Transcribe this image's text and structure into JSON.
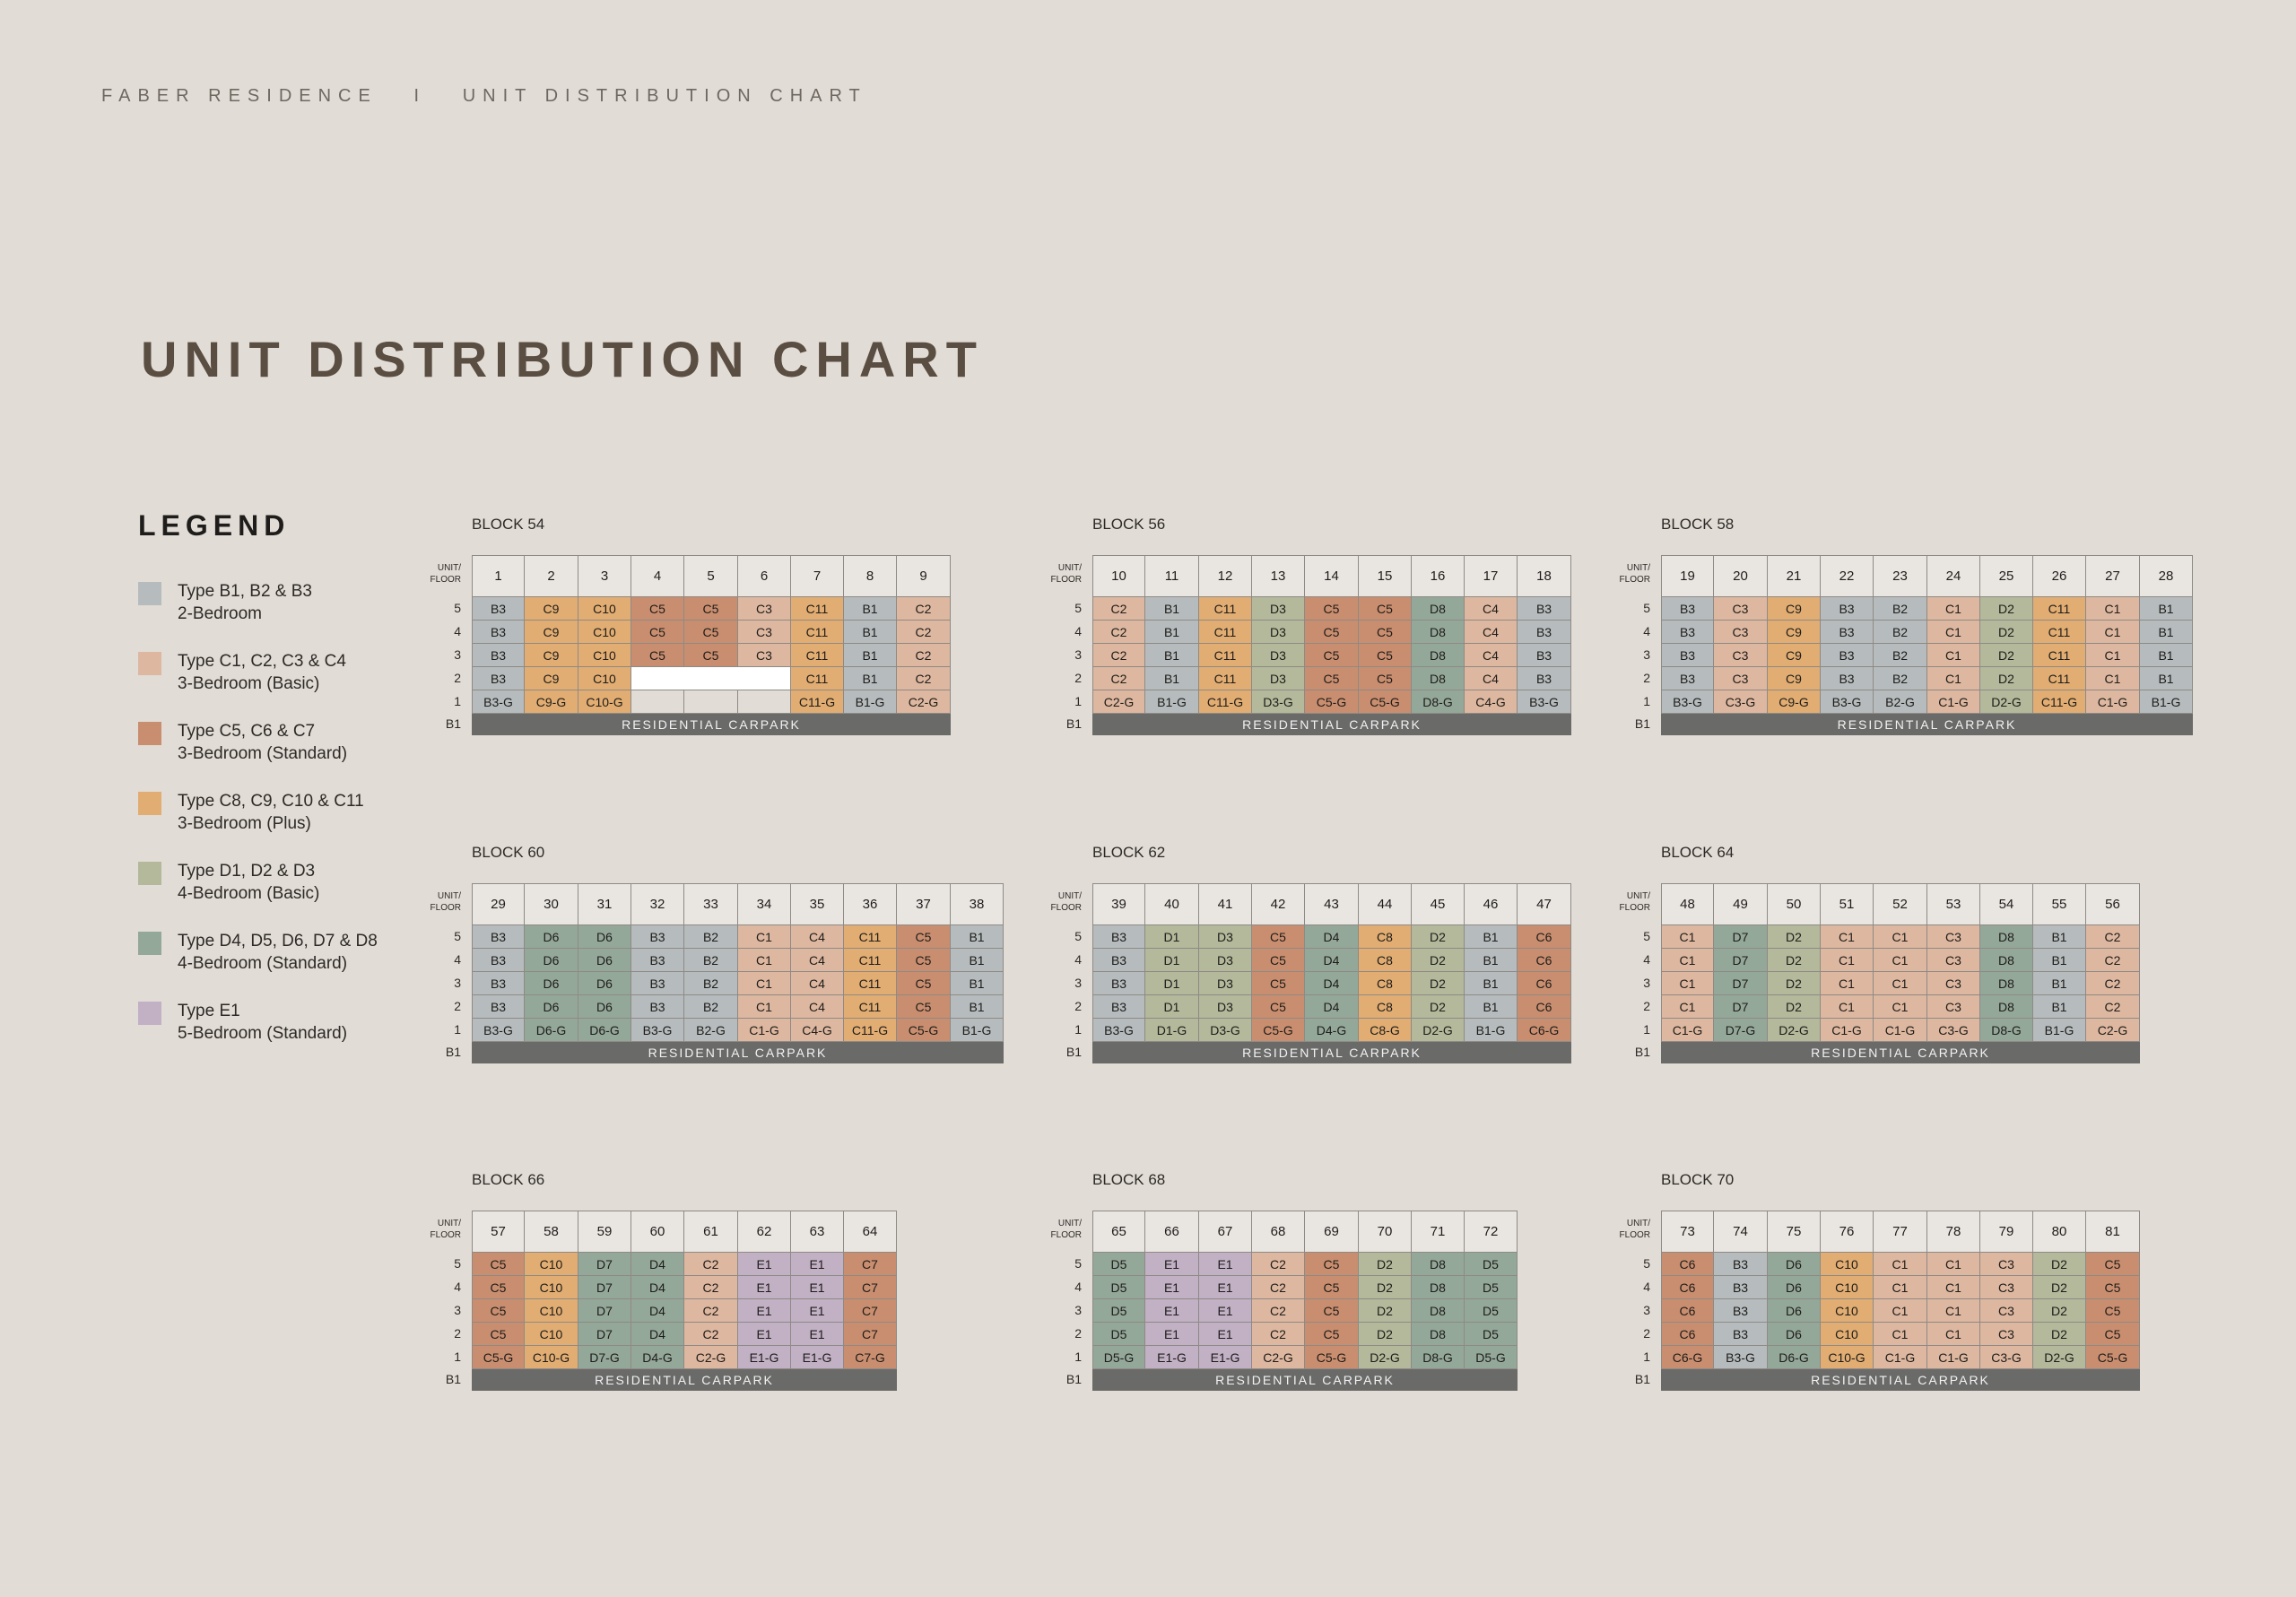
{
  "header": "FABER RESIDENCE   I   UNIT DISTRIBUTION CHART",
  "page_title": "UNIT DISTRIBUTION CHART",
  "floor_header": [
    "UNIT/",
    "FLOOR"
  ],
  "carpark_label": "RESIDENTIAL CARPARK",
  "basement_label": "B1",
  "floors": [
    "5",
    "4",
    "3",
    "2",
    "1"
  ],
  "legend": {
    "title": "LEGEND",
    "items": [
      {
        "key": "B",
        "line1": "Type B1, B2 & B3",
        "line2": "2-Bedroom",
        "color": "#b6bcbd"
      },
      {
        "key": "Cb",
        "line1": "Type C1, C2, C3 & C4",
        "line2": "3-Bedroom (Basic)",
        "color": "#ddb79f"
      },
      {
        "key": "Cs",
        "line1": "Type C5, C6 & C7",
        "line2": "3-Bedroom (Standard)",
        "color": "#c98e6f"
      },
      {
        "key": "Cp",
        "line1": "Type C8, C9, C10 & C11",
        "line2": "3-Bedroom (Plus)",
        "color": "#e1ad72"
      },
      {
        "key": "Db",
        "line1": "Type D1, D2 & D3",
        "line2": "4-Bedroom (Basic)",
        "color": "#b3b99a"
      },
      {
        "key": "Ds",
        "line1": "Type D4, D5, D6, D7 & D8",
        "line2": "4-Bedroom (Standard)",
        "color": "#94a899"
      },
      {
        "key": "E",
        "line1": "Type E1",
        "line2": "5-Bedroom (Standard)",
        "color": "#c2b0c4"
      }
    ]
  },
  "blocks": [
    {
      "name": "BLOCK 54",
      "units": [
        "1",
        "2",
        "3",
        "4",
        "5",
        "6",
        "7",
        "8",
        "9"
      ],
      "types": [
        "B3",
        "C9",
        "C10",
        "C5",
        "C5",
        "C3",
        "C11",
        "B1",
        "C2"
      ],
      "ground": [
        "B3-G",
        "C9-G",
        "C10-G",
        "",
        "",
        "",
        "C11-G",
        "B1-G",
        "C2-G"
      ],
      "void_floor2": [
        3,
        4,
        5
      ]
    },
    {
      "name": "BLOCK 56",
      "units": [
        "10",
        "11",
        "12",
        "13",
        "14",
        "15",
        "16",
        "17",
        "18"
      ],
      "types": [
        "C2",
        "B1",
        "C11",
        "D3",
        "C5",
        "C5",
        "D8",
        "C4",
        "B3"
      ],
      "ground": [
        "C2-G",
        "B1-G",
        "C11-G",
        "D3-G",
        "C5-G",
        "C5-G",
        "D8-G",
        "C4-G",
        "B3-G"
      ]
    },
    {
      "name": "BLOCK 58",
      "units": [
        "19",
        "20",
        "21",
        "22",
        "23",
        "24",
        "25",
        "26",
        "27",
        "28"
      ],
      "types": [
        "B3",
        "C3",
        "C9",
        "B3",
        "B2",
        "C1",
        "D2",
        "C11",
        "C1",
        "B1"
      ],
      "ground": [
        "B3-G",
        "C3-G",
        "C9-G",
        "B3-G",
        "B2-G",
        "C1-G",
        "D2-G",
        "C11-G",
        "C1-G",
        "B1-G"
      ]
    },
    {
      "name": "BLOCK 60",
      "units": [
        "29",
        "30",
        "31",
        "32",
        "33",
        "34",
        "35",
        "36",
        "37",
        "38"
      ],
      "types": [
        "B3",
        "D6",
        "D6",
        "B3",
        "B2",
        "C1",
        "C4",
        "C11",
        "C5",
        "B1"
      ],
      "ground": [
        "B3-G",
        "D6-G",
        "D6-G",
        "B3-G",
        "B2-G",
        "C1-G",
        "C4-G",
        "C11-G",
        "C5-G",
        "B1-G"
      ]
    },
    {
      "name": "BLOCK 62",
      "units": [
        "39",
        "40",
        "41",
        "42",
        "43",
        "44",
        "45",
        "46",
        "47"
      ],
      "types": [
        "B3",
        "D1",
        "D3",
        "C5",
        "D4",
        "C8",
        "D2",
        "B1",
        "C6"
      ],
      "ground": [
        "B3-G",
        "D1-G",
        "D3-G",
        "C5-G",
        "D4-G",
        "C8-G",
        "D2-G",
        "B1-G",
        "C6-G"
      ]
    },
    {
      "name": "BLOCK 64",
      "units": [
        "48",
        "49",
        "50",
        "51",
        "52",
        "53",
        "54",
        "55",
        "56"
      ],
      "types": [
        "C1",
        "D7",
        "D2",
        "C1",
        "C1",
        "C3",
        "D8",
        "B1",
        "C2"
      ],
      "ground": [
        "C1-G",
        "D7-G",
        "D2-G",
        "C1-G",
        "C1-G",
        "C3-G",
        "D8-G",
        "B1-G",
        "C2-G"
      ]
    },
    {
      "name": "BLOCK 66",
      "units": [
        "57",
        "58",
        "59",
        "60",
        "61",
        "62",
        "63",
        "64"
      ],
      "types": [
        "C5",
        "C10",
        "D7",
        "D4",
        "C2",
        "E1",
        "E1",
        "C7"
      ],
      "ground": [
        "C5-G",
        "C10-G",
        "D7-G",
        "D4-G",
        "C2-G",
        "E1-G",
        "E1-G",
        "C7-G"
      ]
    },
    {
      "name": "BLOCK 68",
      "units": [
        "65",
        "66",
        "67",
        "68",
        "69",
        "70",
        "71",
        "72"
      ],
      "types": [
        "D5",
        "E1",
        "E1",
        "C2",
        "C5",
        "D2",
        "D8",
        "D5"
      ],
      "ground": [
        "D5-G",
        "E1-G",
        "E1-G",
        "C2-G",
        "C5-G",
        "D2-G",
        "D8-G",
        "D5-G"
      ]
    },
    {
      "name": "BLOCK 70",
      "units": [
        "73",
        "74",
        "75",
        "76",
        "77",
        "78",
        "79",
        "80",
        "81"
      ],
      "types": [
        "C6",
        "B3",
        "D6",
        "C10",
        "C1",
        "C1",
        "C3",
        "D2",
        "C5"
      ],
      "ground": [
        "C6-G",
        "B3-G",
        "D6-G",
        "C10-G",
        "C1-G",
        "C1-G",
        "C3-G",
        "D2-G",
        "C5-G"
      ]
    }
  ]
}
